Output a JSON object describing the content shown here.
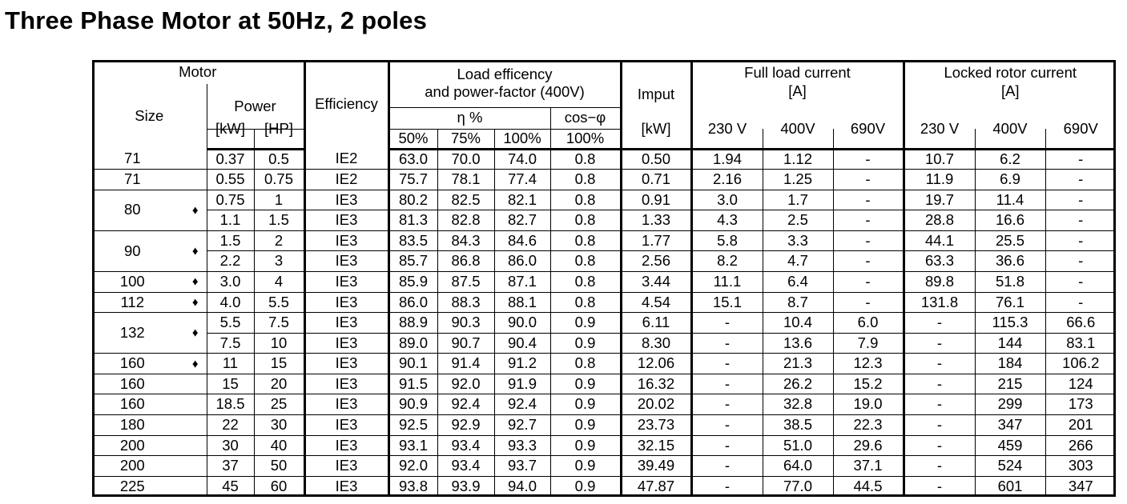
{
  "title": "Three Phase Motor at 50Hz, 2 poles",
  "headers": {
    "motor": "Motor",
    "size": "Size",
    "power": "Power",
    "kw": "[kW]",
    "hp": "[HP]",
    "efficiency": "Efficiency",
    "load_eff_line1": "Load efficency",
    "load_eff_line2": "and power-factor (400V)",
    "eta": "η %",
    "cos_phi": "cos−φ",
    "p50": "50%",
    "p75": "75%",
    "p100": "100%",
    "cos100": "100%",
    "imput": "Imput",
    "imput_kw": "[kW]",
    "flc_line1": "Full load current",
    "flc_line2": "[A]",
    "lrc_line1": "Locked rotor current",
    "lrc_line2": "[A]",
    "v230": "230 V",
    "v400": "400V",
    "v690": "690V",
    "lv230": "230 V",
    "lv400": "400V",
    "lv690": "690V"
  },
  "size_groups": [
    {
      "size": "71",
      "diamond": "",
      "rows": 1
    },
    {
      "size": "71",
      "diamond": "",
      "rows": 1
    },
    {
      "size": "80",
      "diamond": "♦",
      "rows": 2
    },
    {
      "size": "90",
      "diamond": "♦",
      "rows": 2
    },
    {
      "size": "100",
      "diamond": "♦",
      "rows": 1
    },
    {
      "size": "112",
      "diamond": "♦",
      "rows": 1
    },
    {
      "size": "132",
      "diamond": "♦",
      "rows": 2
    },
    {
      "size": "160",
      "diamond": "♦",
      "rows": 1
    },
    {
      "size": "160",
      "diamond": "",
      "rows": 1
    },
    {
      "size": "160",
      "diamond": "",
      "rows": 1
    },
    {
      "size": "180",
      "diamond": "",
      "rows": 1
    },
    {
      "size": "200",
      "diamond": "",
      "rows": 1
    },
    {
      "size": "200",
      "diamond": "",
      "rows": 1
    },
    {
      "size": "225",
      "diamond": "",
      "rows": 1
    }
  ],
  "rows": [
    [
      "0.37",
      "0.5",
      "IE2",
      "63.0",
      "70.0",
      "74.0",
      "0.8",
      "0.50",
      "1.94",
      "1.12",
      "-",
      "10.7",
      "6.2",
      "-"
    ],
    [
      "0.55",
      "0.75",
      "IE2",
      "75.7",
      "78.1",
      "77.4",
      "0.8",
      "0.71",
      "2.16",
      "1.25",
      "-",
      "11.9",
      "6.9",
      "-"
    ],
    [
      "0.75",
      "1",
      "IE3",
      "80.2",
      "82.5",
      "82.1",
      "0.8",
      "0.91",
      "3.0",
      "1.7",
      "-",
      "19.7",
      "11.4",
      "-"
    ],
    [
      "1.1",
      "1.5",
      "IE3",
      "81.3",
      "82.8",
      "82.7",
      "0.8",
      "1.33",
      "4.3",
      "2.5",
      "-",
      "28.8",
      "16.6",
      "-"
    ],
    [
      "1.5",
      "2",
      "IE3",
      "83.5",
      "84.3",
      "84.6",
      "0.8",
      "1.77",
      "5.8",
      "3.3",
      "-",
      "44.1",
      "25.5",
      "-"
    ],
    [
      "2.2",
      "3",
      "IE3",
      "85.7",
      "86.8",
      "86.0",
      "0.8",
      "2.56",
      "8.2",
      "4.7",
      "-",
      "63.3",
      "36.6",
      "-"
    ],
    [
      "3.0",
      "4",
      "IE3",
      "85.9",
      "87.5",
      "87.1",
      "0.8",
      "3.44",
      "11.1",
      "6.4",
      "-",
      "89.8",
      "51.8",
      "-"
    ],
    [
      "4.0",
      "5.5",
      "IE3",
      "86.0",
      "88.3",
      "88.1",
      "0.8",
      "4.54",
      "15.1",
      "8.7",
      "-",
      "131.8",
      "76.1",
      "-"
    ],
    [
      "5.5",
      "7.5",
      "IE3",
      "88.9",
      "90.3",
      "90.0",
      "0.9",
      "6.11",
      "-",
      "10.4",
      "6.0",
      "-",
      "115.3",
      "66.6"
    ],
    [
      "7.5",
      "10",
      "IE3",
      "89.0",
      "90.7",
      "90.4",
      "0.9",
      "8.30",
      "-",
      "13.6",
      "7.9",
      "-",
      "144",
      "83.1"
    ],
    [
      "11",
      "15",
      "IE3",
      "90.1",
      "91.4",
      "91.2",
      "0.8",
      "12.06",
      "-",
      "21.3",
      "12.3",
      "-",
      "184",
      "106.2"
    ],
    [
      "15",
      "20",
      "IE3",
      "91.5",
      "92.0",
      "91.9",
      "0.9",
      "16.32",
      "-",
      "26.2",
      "15.2",
      "-",
      "215",
      "124"
    ],
    [
      "18.5",
      "25",
      "IE3",
      "90.9",
      "92.4",
      "92.4",
      "0.9",
      "20.02",
      "-",
      "32.8",
      "19.0",
      "-",
      "299",
      "173"
    ],
    [
      "22",
      "30",
      "IE3",
      "92.5",
      "92.9",
      "92.7",
      "0.9",
      "23.73",
      "-",
      "38.5",
      "22.3",
      "-",
      "347",
      "201"
    ],
    [
      "30",
      "40",
      "IE3",
      "93.1",
      "93.4",
      "93.3",
      "0.9",
      "32.15",
      "-",
      "51.0",
      "29.6",
      "-",
      "459",
      "266"
    ],
    [
      "37",
      "50",
      "IE3",
      "92.0",
      "93.4",
      "93.7",
      "0.9",
      "39.49",
      "-",
      "64.0",
      "37.1",
      "-",
      "524",
      "303"
    ],
    [
      "45",
      "60",
      "IE3",
      "93.8",
      "93.9",
      "94.0",
      "0.9",
      "47.87",
      "-",
      "77.0",
      "44.5",
      "-",
      "601",
      "347"
    ]
  ]
}
